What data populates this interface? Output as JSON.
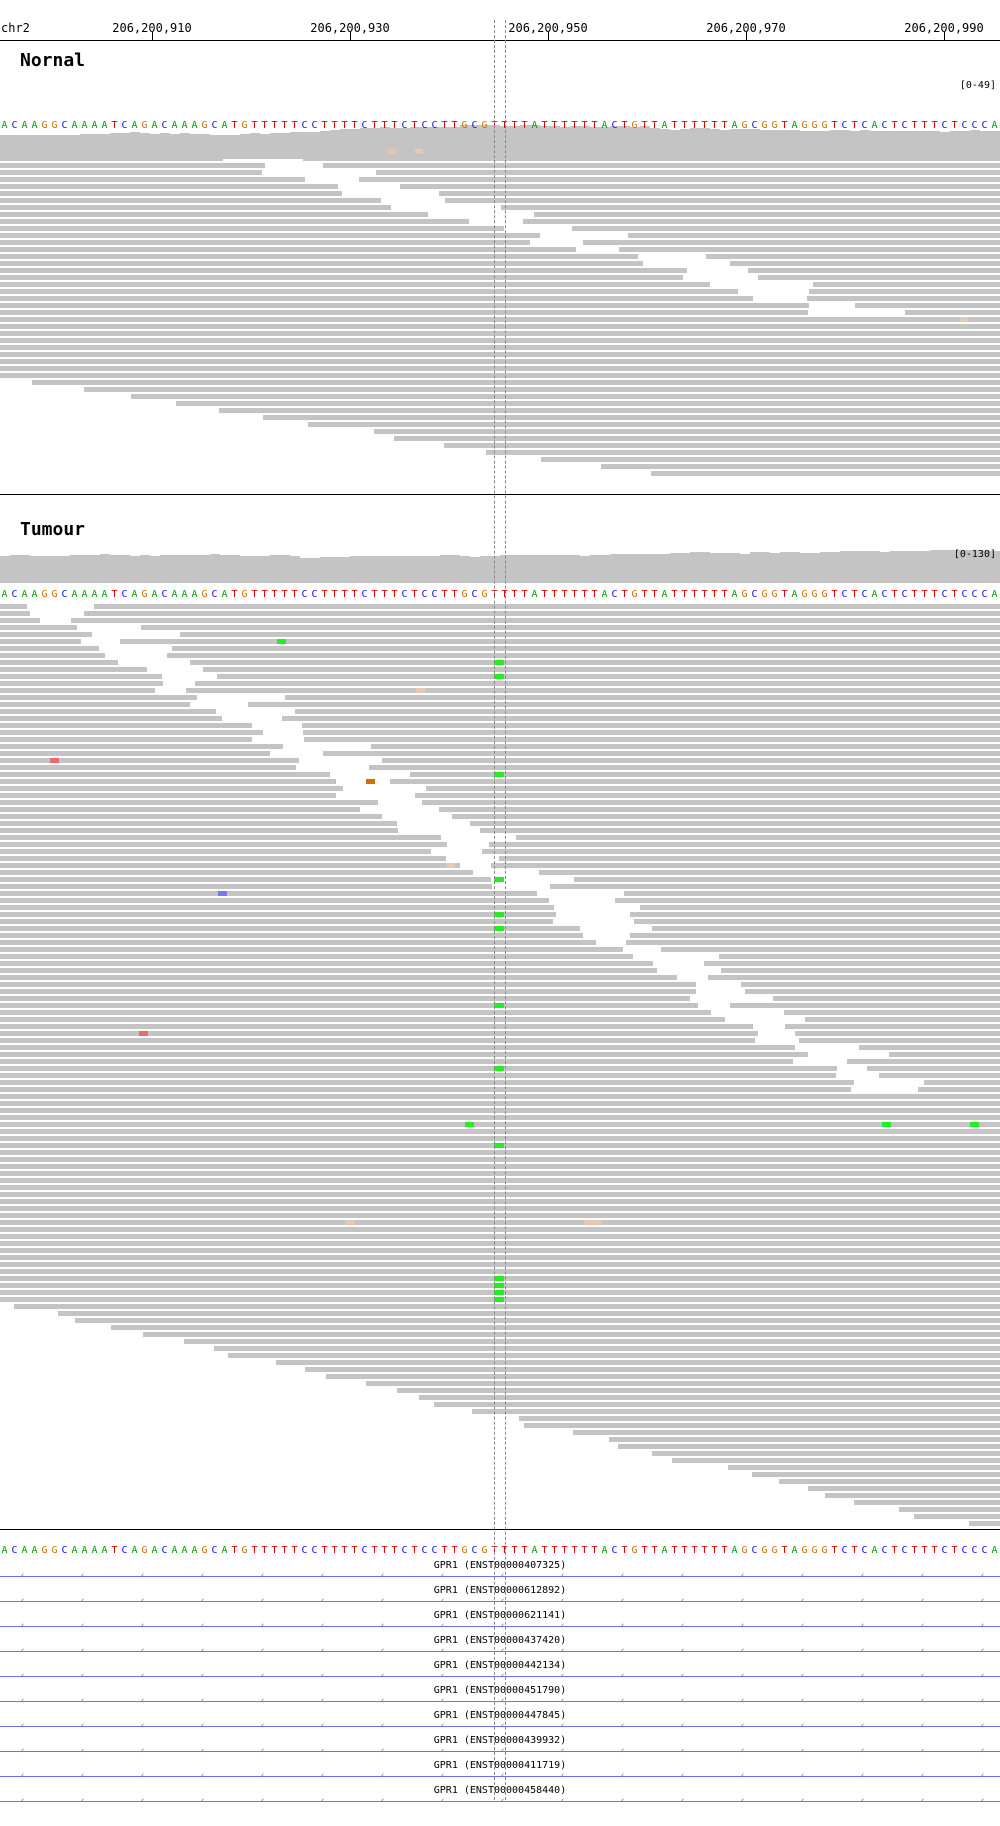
{
  "ruler": {
    "chrom": "chr2",
    "ticks": [
      "206,200,910",
      "206,200,930",
      "206,200,950",
      "206,200,970",
      "206,200,990"
    ]
  },
  "sequence": "ACAAGGCAAAATCAGACAAAGCATGTTTTTCCTTTTCTTTCTCCTTGCGTTTTATTTTTTACTGTTATTTTTTAGCGGTAGGGTCTCACTCTTTCTCCCA",
  "base_colors": {
    "A": "#00a000",
    "C": "#1010ee",
    "G": "#d17105",
    "T": "#e00000"
  },
  "mismatch_colors": {
    "A": "#22ee22",
    "C": "#7777ee",
    "G": "#d17105",
    "T": "#e86a6a",
    "lowq": "#e8c8b0"
  },
  "normal": {
    "title": "Nornal",
    "range": "[0-49]",
    "coverage": [
      23,
      24,
      24,
      24,
      24,
      24,
      24,
      24,
      25,
      25,
      25,
      26,
      26,
      27,
      26,
      25,
      26,
      25,
      26,
      25,
      25,
      24,
      24,
      24,
      25,
      26,
      25,
      26,
      26,
      27,
      27,
      27,
      28,
      29,
      30,
      30,
      31,
      31,
      32,
      31,
      31,
      32,
      32,
      32,
      32,
      32,
      34,
      34,
      34,
      34,
      33,
      33,
      34,
      34,
      33,
      33,
      32,
      33,
      33,
      32,
      32,
      33,
      33,
      32,
      33,
      31,
      30,
      29,
      30,
      31,
      31,
      30,
      29,
      30,
      30,
      30,
      29,
      29,
      29,
      29,
      28,
      28,
      28,
      29,
      29,
      28,
      29,
      28,
      28,
      28,
      28,
      28,
      28,
      28,
      27,
      28,
      28,
      29,
      28,
      28
    ],
    "mismatches": [
      {
        "row": 2,
        "x": 388,
        "w": 8,
        "base": "lowq"
      },
      {
        "row": 2,
        "x": 415,
        "w": 8,
        "base": "lowq"
      },
      {
        "row": 26,
        "x": 960,
        "w": 8,
        "base": "lowq"
      }
    ]
  },
  "tumour": {
    "title": "Tumour",
    "range": "[0-130]",
    "coverage": [
      28,
      29,
      29,
      28,
      28,
      28,
      28,
      29,
      29,
      29,
      30,
      29,
      29,
      28,
      29,
      28,
      29,
      29,
      29,
      29,
      29,
      30,
      29,
      29,
      28,
      28,
      28,
      29,
      29,
      28,
      26,
      26,
      27,
      27,
      27,
      28,
      28,
      28,
      28,
      28,
      28,
      28,
      28,
      28,
      29,
      29,
      28,
      27,
      28,
      28,
      29,
      29,
      29,
      29,
      29,
      29,
      29,
      29,
      28,
      29,
      29,
      30,
      30,
      30,
      30,
      30,
      30,
      31,
      31,
      32,
      32,
      31,
      31,
      31,
      30,
      32,
      32,
      31,
      32,
      32,
      31,
      31,
      32,
      32,
      33,
      33,
      33,
      33,
      32,
      33,
      33,
      33,
      33,
      34,
      34,
      34,
      34,
      34,
      34,
      33
    ],
    "mismatches": [
      {
        "row": 5,
        "x": 277,
        "w": 9,
        "base": "A"
      },
      {
        "row": 8,
        "x": 494,
        "w": 10,
        "base": "A"
      },
      {
        "row": 10,
        "x": 494,
        "w": 10,
        "base": "A"
      },
      {
        "row": 12,
        "x": 416,
        "w": 9,
        "base": "lowq"
      },
      {
        "row": 22,
        "x": 50,
        "w": 9,
        "base": "T"
      },
      {
        "row": 24,
        "x": 494,
        "w": 10,
        "base": "A"
      },
      {
        "row": 25,
        "x": 366,
        "w": 9,
        "base": "G"
      },
      {
        "row": 37,
        "x": 446,
        "w": 9,
        "base": "lowq"
      },
      {
        "row": 39,
        "x": 494,
        "w": 10,
        "base": "A"
      },
      {
        "row": 41,
        "x": 218,
        "w": 9,
        "base": "C"
      },
      {
        "row": 44,
        "x": 494,
        "w": 10,
        "base": "A"
      },
      {
        "row": 46,
        "x": 494,
        "w": 10,
        "base": "A"
      },
      {
        "row": 57,
        "x": 494,
        "w": 10,
        "base": "A"
      },
      {
        "row": 61,
        "x": 139,
        "w": 9,
        "base": "T"
      },
      {
        "row": 66,
        "x": 494,
        "w": 10,
        "base": "A"
      },
      {
        "row": 74,
        "x": 465,
        "w": 9,
        "base": "A"
      },
      {
        "row": 74,
        "x": 882,
        "w": 9,
        "base": "A"
      },
      {
        "row": 74,
        "x": 970,
        "w": 9,
        "base": "A"
      },
      {
        "row": 77,
        "x": 494,
        "w": 10,
        "base": "A"
      },
      {
        "row": 88,
        "x": 346,
        "w": 9,
        "base": "lowq"
      },
      {
        "row": 88,
        "x": 584,
        "w": 18,
        "base": "lowq"
      },
      {
        "row": 96,
        "x": 494,
        "w": 10,
        "base": "A"
      },
      {
        "row": 97,
        "x": 494,
        "w": 10,
        "base": "A"
      },
      {
        "row": 98,
        "x": 494,
        "w": 10,
        "base": "A"
      },
      {
        "row": 99,
        "x": 494,
        "w": 10,
        "base": "A"
      }
    ]
  },
  "transcripts": [
    "GPR1 (ENST00000407325)",
    "GPR1 (ENST00000612892)",
    "GPR1 (ENST00000621141)",
    "GPR1 (ENST00000437420)",
    "GPR1 (ENST00000442134)",
    "GPR1 (ENST00000451790)",
    "GPR1 (ENST00000447845)",
    "GPR1 (ENST00000439932)",
    "GPR1 (ENST00000411719)",
    "GPR1 (ENST00000458440)"
  ]
}
